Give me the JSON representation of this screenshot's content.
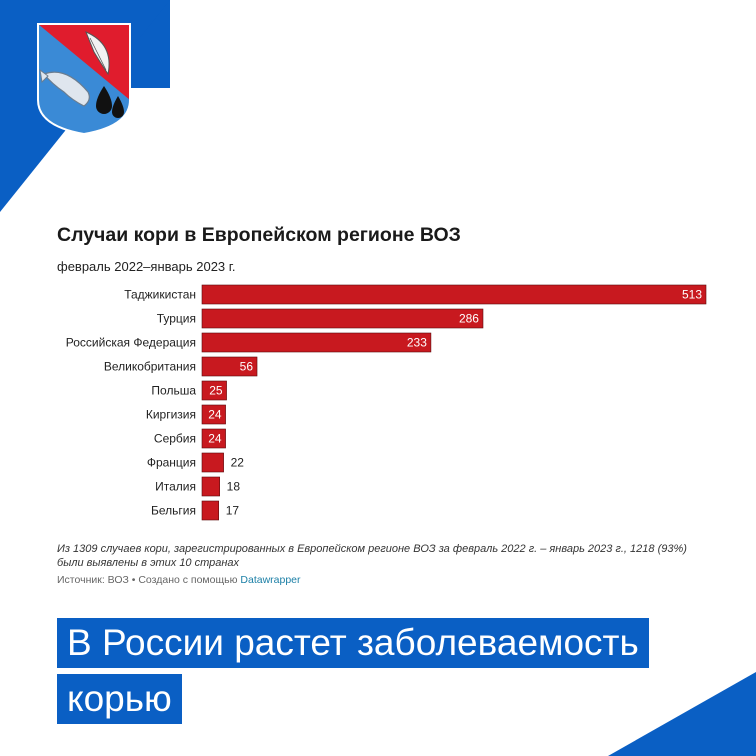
{
  "colors": {
    "brand_blue": "#0a5fc4",
    "bar": "#c8191f",
    "link": "#1b7fa6"
  },
  "logo": {
    "icon": "coat-of-arms-icon"
  },
  "chart_data": {
    "type": "bar",
    "orientation": "horizontal",
    "title": "Случаи кори в Европейском регионе ВОЗ",
    "subtitle": "февраль 2022–январь 2023 г.",
    "categories": [
      "Таджикистан",
      "Турция",
      "Российская Федерация",
      "Великобритания",
      "Польша",
      "Киргизия",
      "Сербия",
      "Франция",
      "Италия",
      "Бельгия"
    ],
    "values": [
      513,
      286,
      233,
      56,
      25,
      24,
      24,
      22,
      18,
      17
    ],
    "value_labels": [
      "513",
      "286",
      "233",
      "56",
      "25",
      "24",
      "24",
      "22",
      "18",
      "17"
    ],
    "xlim": [
      0,
      513
    ],
    "grid": false,
    "legend": "none"
  },
  "note": "Из 1309 случаев кори, зарегистрированных в Европейском регионе ВОЗ за февраль 2022 г. – январь 2023 г., 1218 (93%) были выявлены в этих 10 странах",
  "source": {
    "text": "Источник: ВОЗ • Создано с помощью",
    "link_text": "Datawrapper"
  },
  "headline": {
    "line1": "В России растет заболеваемость",
    "line2": "корью"
  }
}
